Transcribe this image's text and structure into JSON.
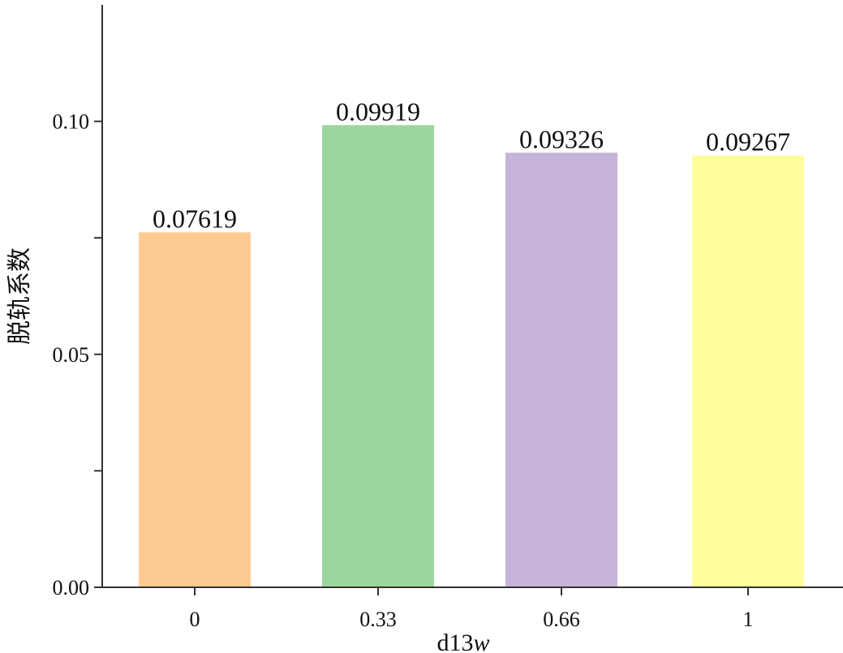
{
  "chart_data": {
    "type": "bar",
    "categories": [
      "0",
      "0.33",
      "0.66",
      "1"
    ],
    "values": [
      0.07619,
      0.09919,
      0.09326,
      0.09267
    ],
    "data_labels": [
      "0.07619",
      "0.09919",
      "0.09326",
      "0.09267"
    ],
    "colors": [
      "#fdcb92",
      "#9dd69c",
      "#c6b3d9",
      "#fdfd9c"
    ],
    "title": "",
    "xlabel": "d13",
    "xlabel_italic": "w",
    "ylabel": "脱轨系数",
    "ylim": [
      0,
      0.125
    ],
    "yticks": [
      0.0,
      0.025,
      0.05,
      0.075,
      0.1
    ],
    "ytick_labels": [
      "0.00",
      "",
      "0.05",
      "",
      "0.10"
    ],
    "grid": false,
    "legend": "none"
  }
}
